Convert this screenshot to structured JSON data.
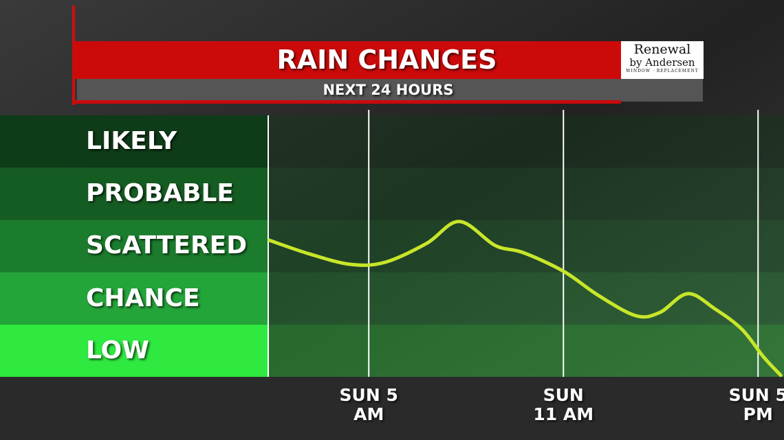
{
  "chart_data": {
    "type": "line",
    "title": "RAIN CHANCES",
    "subtitle": "NEXT 24 HOURS",
    "sponsor": {
      "name": "Renewal",
      "byline": "by Andersen",
      "tagline": "WINDOW · REPLACEMENT"
    },
    "x": [
      1.94,
      3.17,
      4.44,
      5.5,
      6.78,
      7.79,
      8.9,
      9.74,
      11.0,
      12.07,
      13.23,
      13.97,
      14.83,
      15.67,
      16.5,
      17.17,
      17.7
    ],
    "series": [
      {
        "name": "Rain chance",
        "color": "#c8e62a",
        "values": [
          2.61,
          2.35,
          2.15,
          2.19,
          2.55,
          2.97,
          2.51,
          2.38,
          2.02,
          1.56,
          1.17,
          1.23,
          1.59,
          1.3,
          0.91,
          0.38,
          0.03
        ]
      }
    ],
    "xlim": [
      1.9,
      17.8
    ],
    "xticks": [
      {
        "value": 5,
        "label": "SUN 5 AM"
      },
      {
        "value": 11,
        "label": "SUN 11 AM"
      },
      {
        "value": 17,
        "label": "SUN 5 PM"
      }
    ],
    "ylim": [
      0,
      5
    ],
    "yticks": [
      {
        "value": 4.5,
        "label": "LIKELY"
      },
      {
        "value": 3.5,
        "label": "PROBABLE"
      },
      {
        "value": 2.5,
        "label": "SCATTERED"
      },
      {
        "value": 1.5,
        "label": "CHANCE"
      },
      {
        "value": 0.5,
        "label": "LOW"
      }
    ],
    "band_colors": [
      "#0e3b18",
      "#155c22",
      "#1b7c2d",
      "#24a53a",
      "#2fe840"
    ],
    "grid": true
  }
}
